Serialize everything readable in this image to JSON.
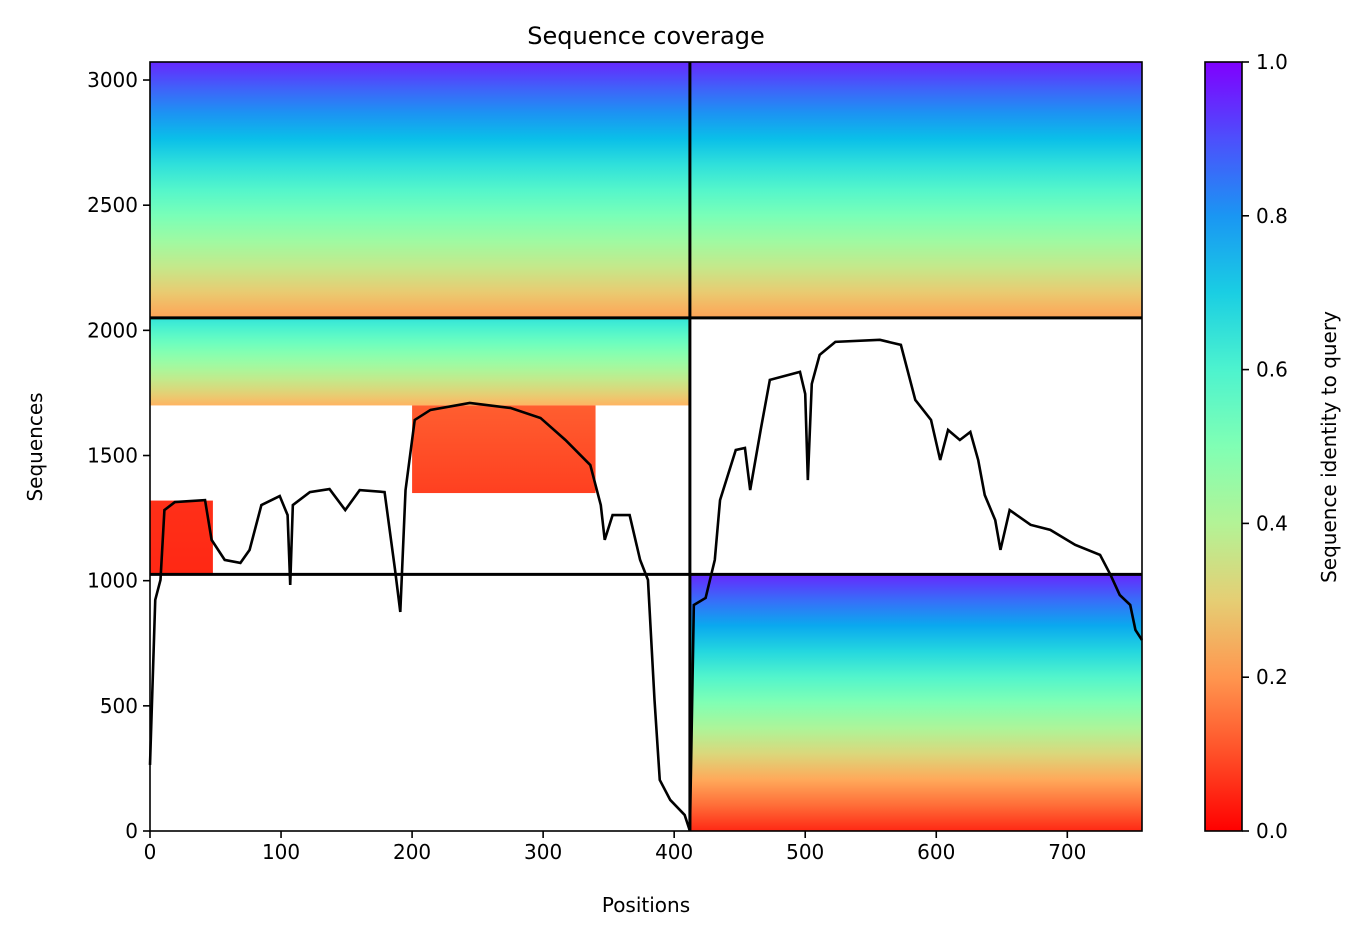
{
  "chart_data": {
    "type": "coverage",
    "title": "Sequence coverage",
    "xlabel": "Positions",
    "ylabel": "Sequences",
    "colorbar_label": "Sequence identity to query",
    "colormap": "rainbow_r",
    "xlim": [
      0,
      757
    ],
    "ylim": [
      0,
      3072
    ],
    "xticks": [
      0,
      100,
      200,
      300,
      400,
      500,
      600,
      700
    ],
    "yticks": [
      0,
      500,
      1000,
      1500,
      2000,
      2500,
      3000
    ],
    "clim": [
      0,
      1
    ],
    "cticks": [
      {
        "value": 0,
        "label": "0.0"
      },
      {
        "value": 0.2,
        "label": "0.2"
      },
      {
        "value": 0.4,
        "label": "0.4"
      },
      {
        "value": 0.6,
        "label": "0.6"
      },
      {
        "value": 0.8,
        "label": "0.8"
      },
      {
        "value": 1,
        "label": "1.0"
      }
    ],
    "x_breaks": [
      412
    ],
    "y_breaks": [
      1025,
      2050
    ],
    "regions": [
      {
        "x": [
          0,
          412
        ],
        "y": [
          2050,
          3072
        ],
        "identity": [
          0.22,
          0.95
        ]
      },
      {
        "x": [
          412,
          757
        ],
        "y": [
          2050,
          3072
        ],
        "identity": [
          0.22,
          0.95
        ]
      },
      {
        "x": [
          0,
          412
        ],
        "y": [
          1700,
          2050
        ],
        "identity": [
          0.25,
          0.65
        ]
      },
      {
        "x": [
          200,
          340
        ],
        "y": [
          1350,
          1700
        ],
        "identity": [
          0.08,
          0.12
        ]
      },
      {
        "x": [
          0,
          48
        ],
        "y": [
          1025,
          1320
        ],
        "identity": [
          0.05,
          0.06
        ]
      },
      {
        "x": [
          412,
          757
        ],
        "y": [
          0,
          1025
        ],
        "identity": [
          0.05,
          0.95
        ]
      }
    ],
    "line_color": "#000000",
    "x": [
      0,
      4,
      8,
      11,
      19,
      42,
      47,
      57,
      69,
      76,
      85,
      99,
      105,
      107,
      109,
      122,
      137,
      149,
      160,
      179,
      187,
      191,
      195,
      202,
      214,
      244,
      275,
      298,
      317,
      336,
      344,
      347,
      353,
      366,
      374,
      380,
      385,
      389,
      397,
      408,
      412,
      415,
      424,
      431,
      435,
      447,
      454,
      458,
      466,
      473,
      496,
      500,
      502,
      505,
      511,
      523,
      557,
      573,
      584,
      596,
      603,
      609,
      618,
      626,
      632,
      637,
      645,
      649,
      656,
      672,
      687,
      706,
      725,
      733,
      740,
      748,
      752,
      757
    ],
    "values": [
      264,
      923,
      1003,
      1282,
      1314,
      1322,
      1163,
      1083,
      1071,
      1123,
      1302,
      1338,
      1262,
      983,
      1302,
      1354,
      1366,
      1282,
      1362,
      1354,
      1043,
      875,
      1362,
      1642,
      1682,
      1710,
      1690,
      1650,
      1562,
      1462,
      1302,
      1163,
      1262,
      1262,
      1083,
      1003,
      523,
      204,
      124,
      64,
      0,
      903,
      931,
      1083,
      1322,
      1522,
      1530,
      1362,
      1602,
      1802,
      1834,
      1746,
      1402,
      1786,
      1902,
      1954,
      1962,
      1942,
      1722,
      1642,
      1482,
      1602,
      1562,
      1594,
      1482,
      1342,
      1242,
      1123,
      1282,
      1223,
      1203,
      1143,
      1103,
      1023,
      943,
      903,
      803,
      763
    ]
  }
}
